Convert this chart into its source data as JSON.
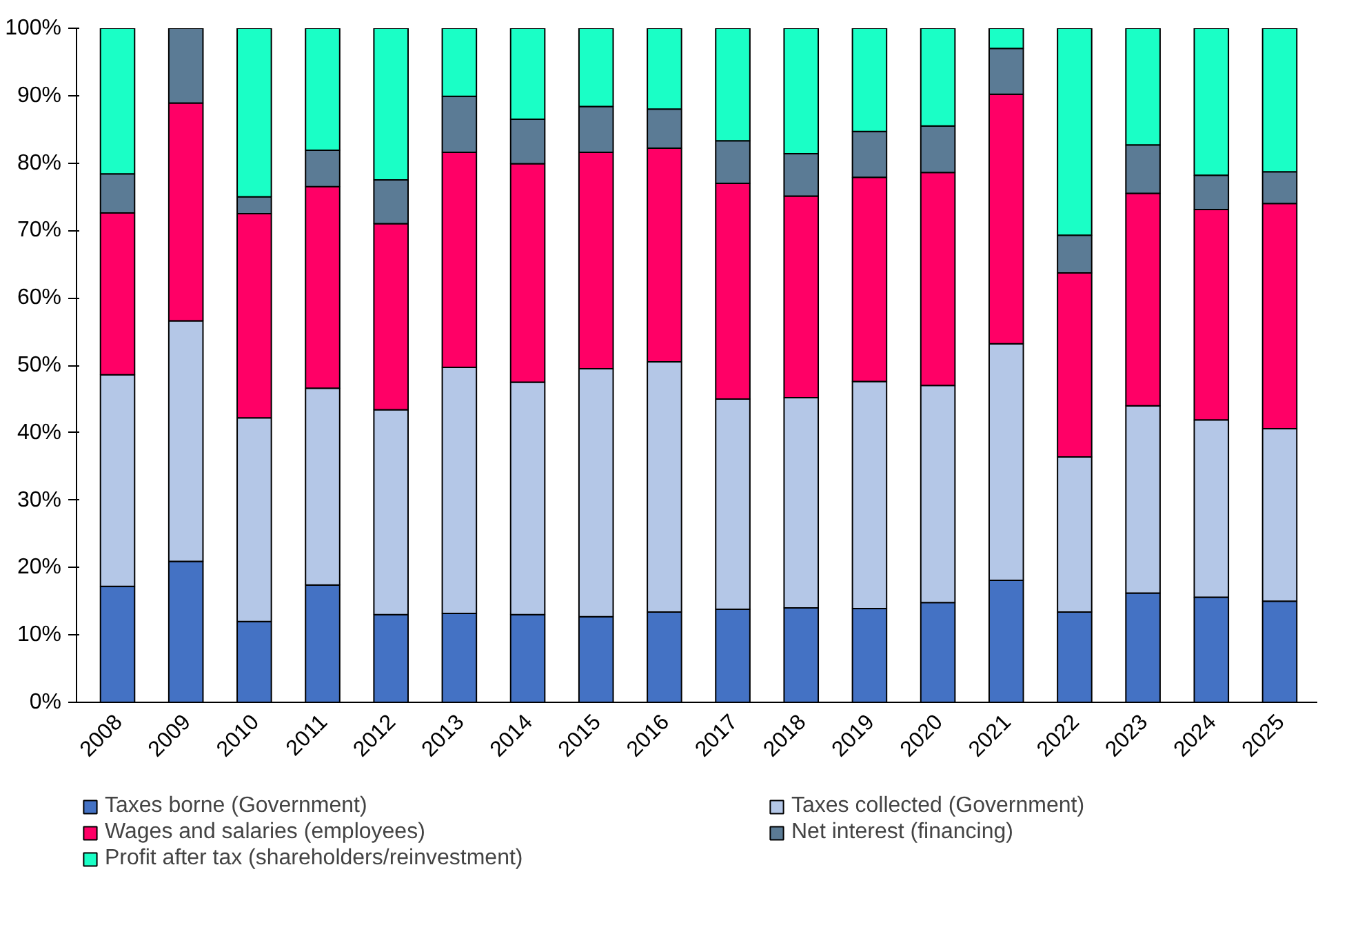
{
  "chart_data": {
    "type": "bar",
    "stacked": true,
    "categories": [
      "2008",
      "2009",
      "2010",
      "2011",
      "2012",
      "2013",
      "2014",
      "2015",
      "2016",
      "2017",
      "2018",
      "2019",
      "2020",
      "2021",
      "2022",
      "2023",
      "2024",
      "2025"
    ],
    "series": [
      {
        "name": "Taxes borne (Government)",
        "color": "#4472c4",
        "values": [
          17.2,
          20.9,
          12.0,
          17.4,
          13.0,
          13.2,
          13.0,
          12.7,
          13.4,
          13.8,
          14.0,
          13.9,
          14.8,
          18.1,
          13.4,
          16.2,
          15.6,
          15.0
        ]
      },
      {
        "name": "Taxes collected (Government)",
        "color": "#b4c7e7",
        "values": [
          31.4,
          35.7,
          30.2,
          29.2,
          30.4,
          36.5,
          34.5,
          36.8,
          37.1,
          31.2,
          31.2,
          33.7,
          32.2,
          35.1,
          23.0,
          27.8,
          26.3,
          25.6
        ]
      },
      {
        "name": "Wages and salaries (employees)",
        "color": "#ff0066",
        "values": [
          24.0,
          32.3,
          30.3,
          29.9,
          27.6,
          31.9,
          32.4,
          32.1,
          31.7,
          32.0,
          29.9,
          30.3,
          31.6,
          37.0,
          27.3,
          31.5,
          31.2,
          33.4
        ]
      },
      {
        "name": "Net interest (financing)",
        "color": "#5b7b95",
        "values": [
          5.8,
          11.1,
          2.5,
          5.4,
          6.5,
          8.3,
          6.6,
          6.8,
          5.8,
          6.3,
          6.3,
          6.8,
          6.9,
          6.8,
          5.6,
          7.2,
          5.1,
          4.7
        ]
      },
      {
        "name": "Profit after tax (shareholders/reinvestment)",
        "color": "#1affc6",
        "values": [
          21.6,
          0,
          25.0,
          18.1,
          22.5,
          10.1,
          13.5,
          11.6,
          12.0,
          16.7,
          18.6,
          15.3,
          14.5,
          3.0,
          30.7,
          17.3,
          21.8,
          21.3
        ]
      }
    ],
    "ylim": [
      0,
      100
    ],
    "yticks": [
      {
        "value": 0,
        "label": "0%"
      },
      {
        "value": 10,
        "label": "10%"
      },
      {
        "value": 20,
        "label": "20%"
      },
      {
        "value": 30,
        "label": "30%"
      },
      {
        "value": 40,
        "label": "40%"
      },
      {
        "value": 50,
        "label": "50%"
      },
      {
        "value": 60,
        "label": "60%"
      },
      {
        "value": 70,
        "label": "70%"
      },
      {
        "value": 80,
        "label": "80%"
      },
      {
        "value": 90,
        "label": "90%"
      },
      {
        "value": 100,
        "label": "100%"
      }
    ],
    "grid": false,
    "legend": "bottom"
  }
}
